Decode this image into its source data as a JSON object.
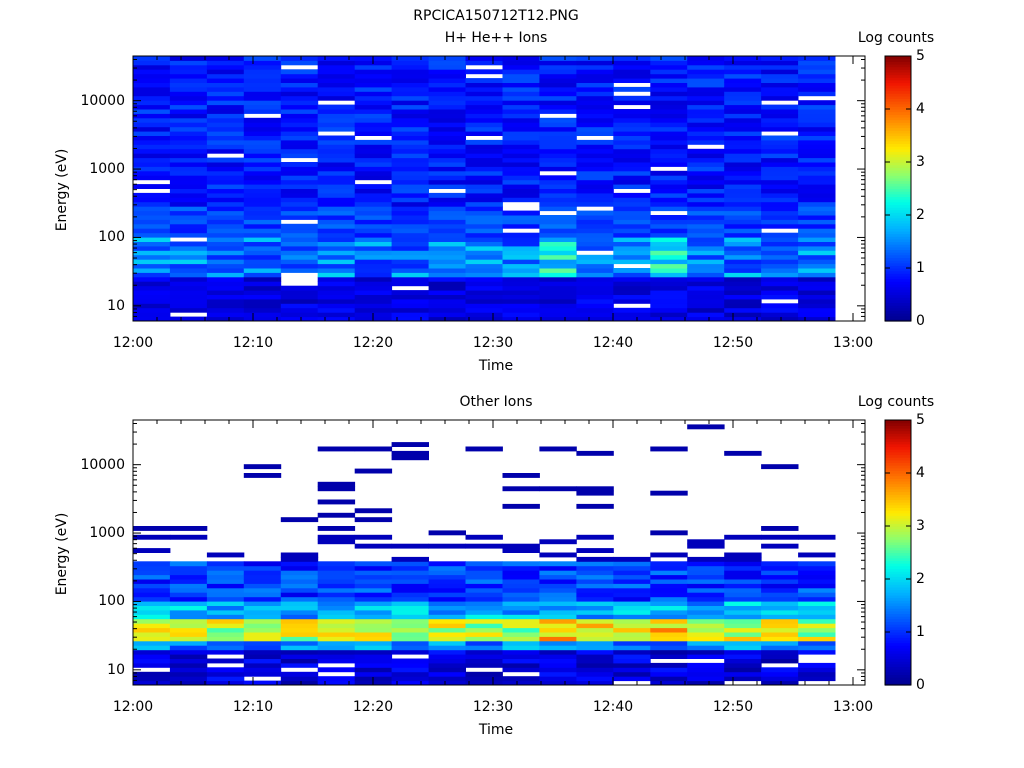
{
  "page_title": "RPCICA150712T12.PNG",
  "chart_data": [
    {
      "type": "heatmap",
      "title": "H+ He++ Ions",
      "xlabel": "Time",
      "ylabel": "Energy (eV)",
      "x_ticks": [
        "12:00",
        "12:10",
        "12:20",
        "12:30",
        "12:40",
        "12:50",
        "13:00"
      ],
      "xlim": [
        "12:00",
        "13:01"
      ],
      "y_scale": "log",
      "ylim": [
        6,
        45000
      ],
      "y_ticks": [
        "10",
        "100",
        "1000",
        "10000"
      ],
      "colorbar": {
        "label": "Log counts",
        "range": [
          0,
          5
        ],
        "ticks": [
          "0",
          "1",
          "2",
          "3",
          "4",
          "5"
        ]
      },
      "time_bins": [
        "12:00",
        "12:03",
        "12:06",
        "12:10",
        "12:13",
        "12:16",
        "12:19",
        "12:23",
        "12:26",
        "12:29",
        "12:33",
        "12:36",
        "12:39",
        "12:43",
        "12:46",
        "12:49",
        "12:53",
        "12:56",
        "12:59"
      ],
      "description_by_energy": {
        "high_energy_above_300eV": "mostly 0.5-1.2 log counts",
        "100_to_300eV": "mostly 0.8-1.3 log counts",
        "30_to_60eV": "peaks about 1.5-2.2 log counts, highest near 12:36 and 12:46-12:49",
        "below_20eV": "mostly 0.2-0.8 log counts"
      },
      "grid": false
    },
    {
      "type": "heatmap",
      "title": "Other Ions",
      "xlabel": "Time",
      "ylabel": "Energy (eV)",
      "x_ticks": [
        "12:00",
        "12:10",
        "12:20",
        "12:30",
        "12:40",
        "12:50",
        "13:00"
      ],
      "xlim": [
        "12:00",
        "13:01"
      ],
      "y_scale": "log",
      "ylim": [
        6,
        45000
      ],
      "y_ticks": [
        "10",
        "100",
        "1000",
        "10000"
      ],
      "colorbar": {
        "label": "Log counts",
        "range": [
          0,
          5
        ],
        "ticks": [
          "0",
          "1",
          "2",
          "3",
          "4",
          "5"
        ]
      },
      "time_bins": [
        "12:00",
        "12:03",
        "12:06",
        "12:10",
        "12:13",
        "12:16",
        "12:19",
        "12:23",
        "12:26",
        "12:29",
        "12:33",
        "12:36",
        "12:39",
        "12:43",
        "12:46",
        "12:49",
        "12:53",
        "12:56",
        "12:59"
      ],
      "description_by_energy": {
        "above_1000eV": "sparse isolated bins at about 0.3 log counts",
        "100_to_400eV": "about 0.5-1.5 log counts",
        "30_to_60eV": "peak band about 2.5-3.5 log counts, strongest near 12:36-12:39 and 12:46",
        "below_25eV": "about 0.2-1.0 log counts"
      },
      "grid": false
    }
  ]
}
